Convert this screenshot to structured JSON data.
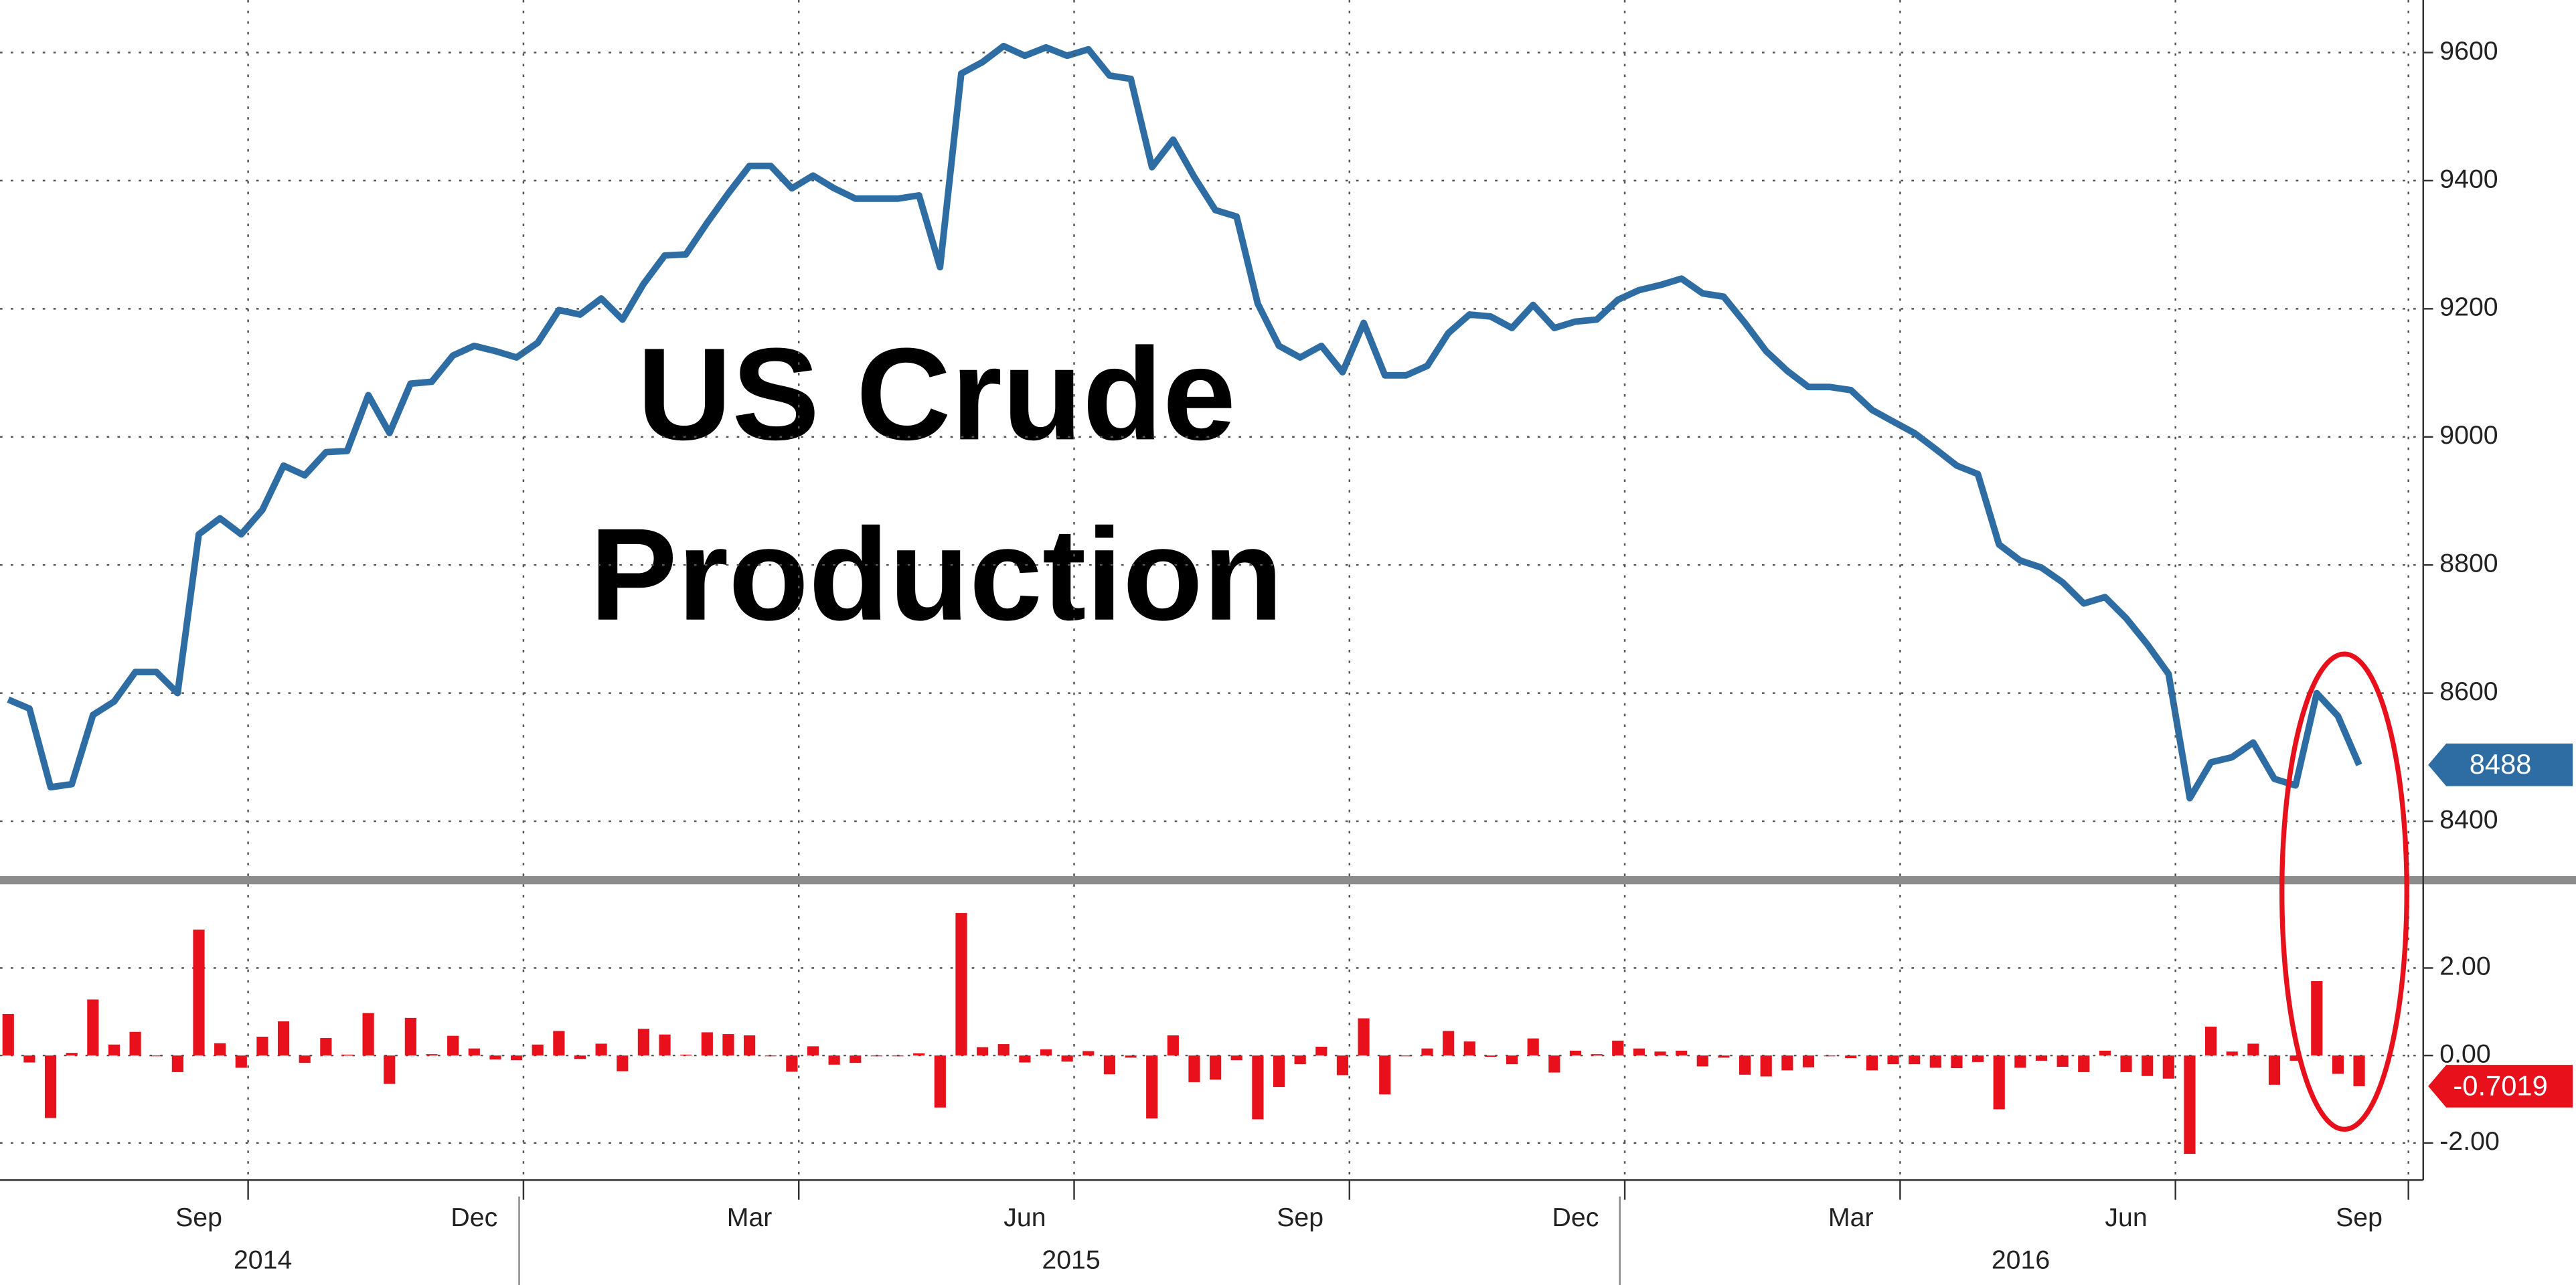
{
  "chart_data": [
    {
      "type": "line",
      "title_lines": [
        "US Crude",
        "Production"
      ],
      "color": "#2e6da4",
      "values": [
        8590,
        8576,
        8453,
        8458,
        8566,
        8587,
        8633,
        8633,
        8600,
        8848,
        8873,
        8848,
        8886,
        8955,
        8940,
        8976,
        8978,
        9065,
        9006,
        9083,
        9086,
        9127,
        9142,
        9134,
        9124,
        9147,
        9198,
        9191,
        9216,
        9183,
        9239,
        9283,
        9285,
        9334,
        9380,
        9423,
        9423,
        9388,
        9408,
        9388,
        9372,
        9372,
        9372,
        9377,
        9265,
        9567,
        9585,
        9610,
        9595,
        9608,
        9595,
        9605,
        9564,
        9559,
        9421,
        9464,
        9406,
        9354,
        9344,
        9208,
        9142,
        9124,
        9142,
        9101,
        9178,
        9096,
        9096,
        9111,
        9162,
        9191,
        9188,
        9170,
        9206,
        9170,
        9180,
        9183,
        9214,
        9229,
        9237,
        9247,
        9224,
        9219,
        9178,
        9134,
        9103,
        9078,
        9078,
        9073,
        9042,
        9024,
        9006,
        8981,
        8955,
        8942,
        8832,
        8807,
        8796,
        8773,
        8740,
        8750,
        8717,
        8676,
        8630,
        8436,
        8492,
        8500,
        8523,
        8466,
        8456,
        8600,
        8564,
        8488
      ],
      "ylim": [
        8308,
        9682
      ],
      "yticks": [
        8400,
        8600,
        8800,
        9000,
        9200,
        9400,
        9600
      ],
      "grid": true
    },
    {
      "type": "bar",
      "color": "#e8101a",
      "categories": [
        null,
        null,
        null,
        null,
        null,
        null,
        null,
        null,
        null,
        "Sep",
        null,
        null,
        null,
        null,
        null,
        null,
        null,
        null,
        null,
        null,
        null,
        null,
        "Dec",
        null,
        null,
        null,
        null,
        null,
        null,
        null,
        null,
        null,
        null,
        null,
        null,
        "Mar",
        null,
        null,
        null,
        null,
        null,
        null,
        null,
        null,
        null,
        null,
        null,
        null,
        "Jun",
        null,
        null,
        null,
        null,
        null,
        null,
        null,
        null,
        null,
        null,
        null,
        null,
        "Sep",
        null,
        null,
        null,
        null,
        null,
        null,
        null,
        null,
        null,
        null,
        null,
        null,
        "Dec",
        null,
        null,
        null,
        null,
        null,
        null,
        null,
        null,
        null,
        null,
        null,
        null,
        "Mar",
        null,
        null,
        null,
        null,
        null,
        null,
        null,
        null,
        null,
        null,
        null,
        null,
        "Jun",
        null,
        null,
        null,
        null,
        null,
        null,
        null,
        null,
        null,
        null,
        "Sep"
      ],
      "years": [
        "2014",
        "2015",
        "2016"
      ],
      "values": [
        0.95,
        -0.16,
        -1.43,
        0.06,
        1.28,
        0.25,
        0.54,
        0,
        -0.38,
        2.88,
        0.28,
        -0.28,
        0.43,
        0.78,
        -0.17,
        0.4,
        0.02,
        0.97,
        -0.65,
        0.86,
        0.03,
        0.45,
        0.16,
        -0.09,
        -0.11,
        0.25,
        0.56,
        -0.08,
        0.27,
        -0.36,
        0.61,
        0.48,
        0.02,
        0.53,
        0.49,
        0.46,
        0,
        -0.37,
        0.21,
        -0.21,
        -0.17,
        0,
        0,
        0.05,
        -1.19,
        3.26,
        0.19,
        0.26,
        -0.16,
        0.14,
        -0.14,
        0.1,
        -0.43,
        -0.05,
        -1.44,
        0.46,
        -0.61,
        -0.55,
        -0.11,
        -1.46,
        -0.72,
        -0.2,
        0.2,
        -0.45,
        0.85,
        -0.89,
        0,
        0.16,
        0.56,
        0.32,
        -0.03,
        -0.2,
        0.39,
        -0.39,
        0.11,
        0.03,
        0.34,
        0.16,
        0.09,
        0.11,
        -0.25,
        -0.05,
        -0.44,
        -0.48,
        -0.34,
        -0.27,
        0,
        -0.06,
        -0.34,
        -0.2,
        -0.2,
        -0.28,
        -0.29,
        -0.15,
        -1.23,
        -0.28,
        -0.12,
        -0.26,
        -0.38,
        0.11,
        -0.38,
        -0.47,
        -0.53,
        -2.25,
        0.66,
        0.09,
        0.27,
        -0.67,
        -0.12,
        1.7,
        -0.42,
        -0.7019
      ],
      "ylim": [
        -2.85,
        3.71
      ],
      "yticks": [
        {
          "value": 2,
          "label": "2.00"
        },
        {
          "value": 0,
          "label": "0.00"
        },
        {
          "value": -2,
          "label": "-2.00"
        }
      ],
      "grid": true
    }
  ]
}
